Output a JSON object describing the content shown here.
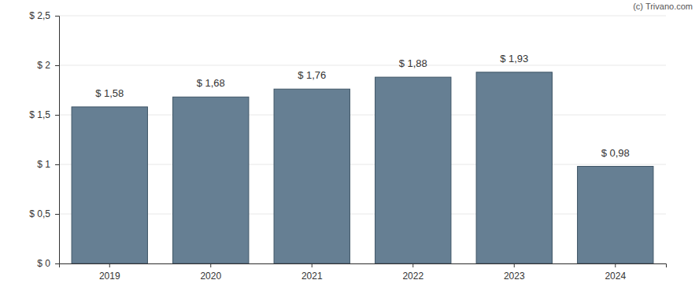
{
  "chart_data": {
    "type": "bar",
    "annotations": [
      "(c) Trivano.com"
    ],
    "categories": [
      "2019",
      "2020",
      "2021",
      "2022",
      "2023",
      "2024"
    ],
    "values": [
      1.58,
      1.68,
      1.76,
      1.88,
      1.93,
      0.98
    ],
    "value_labels": [
      "$ 1,58",
      "$ 1,68",
      "$ 1,76",
      "$ 1,88",
      "$ 1,93",
      "$ 0,98"
    ],
    "data_labels": true,
    "color": "#667f93",
    "ylim": [
      0,
      2.5
    ],
    "yticks": [
      {
        "value": 0,
        "label": "$ 0"
      },
      {
        "value": 0.5,
        "label": "$ 0,5"
      },
      {
        "value": 1,
        "label": "$ 1"
      },
      {
        "value": 1.5,
        "label": "$ 1,5"
      },
      {
        "value": 2,
        "label": "$ 2"
      },
      {
        "value": 2.5,
        "label": "$ 2,5"
      }
    ],
    "grid": true
  }
}
